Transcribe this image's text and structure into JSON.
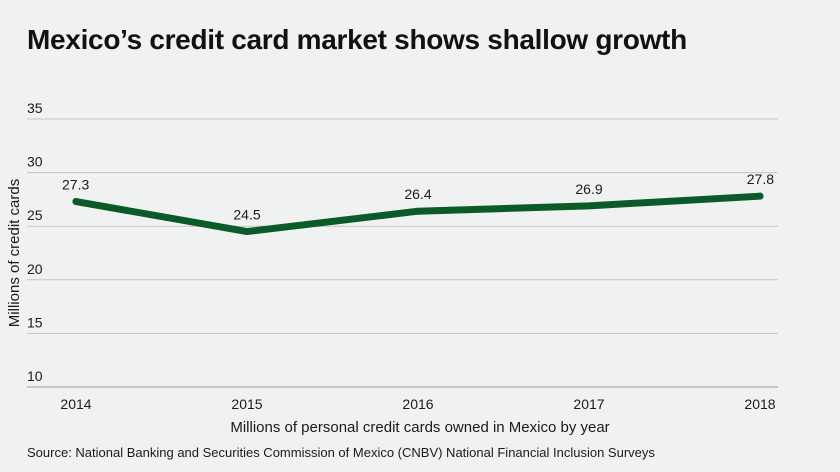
{
  "chart_data": {
    "type": "line",
    "title": "Mexico’s credit card market shows shallow growth",
    "xlabel": "Millions of personal credit cards owned in Mexico by year",
    "ylabel": "Millions of credit cards",
    "source": "Source: National Banking and Securities Commission of Mexico (CNBV) National Financial Inclusion Surveys",
    "categories": [
      "2014",
      "2015",
      "2016",
      "2017",
      "2018"
    ],
    "series": [
      {
        "values": [
          27.3,
          24.5,
          26.4,
          26.9,
          27.8
        ],
        "data_labels": [
          "27.3",
          "24.5",
          "26.4",
          "26.9",
          "27.8"
        ],
        "color": "#0b5a2a"
      }
    ],
    "ylim": [
      10,
      35
    ],
    "yticks": [
      10,
      15,
      20,
      25,
      30,
      35
    ],
    "grid": true,
    "legend": "none"
  }
}
